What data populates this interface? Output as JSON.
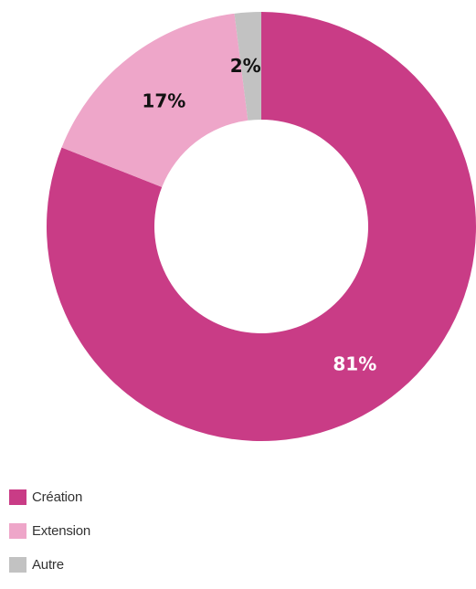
{
  "chart_data": {
    "type": "pie",
    "donut": true,
    "start_angle_deg": 0,
    "direction": "clockwise",
    "series": [
      {
        "name": "Création",
        "value": 81,
        "label": "81%",
        "color": "#c93c86",
        "label_color": "#ffffff"
      },
      {
        "name": "Extension",
        "value": 17,
        "label": "17%",
        "color": "#eea6c9",
        "label_color": "#111111"
      },
      {
        "name": "Autre",
        "value": 2,
        "label": "2%",
        "color": "#c2c2c2",
        "label_color": "#111111"
      }
    ],
    "legend_position": "bottom-left"
  }
}
